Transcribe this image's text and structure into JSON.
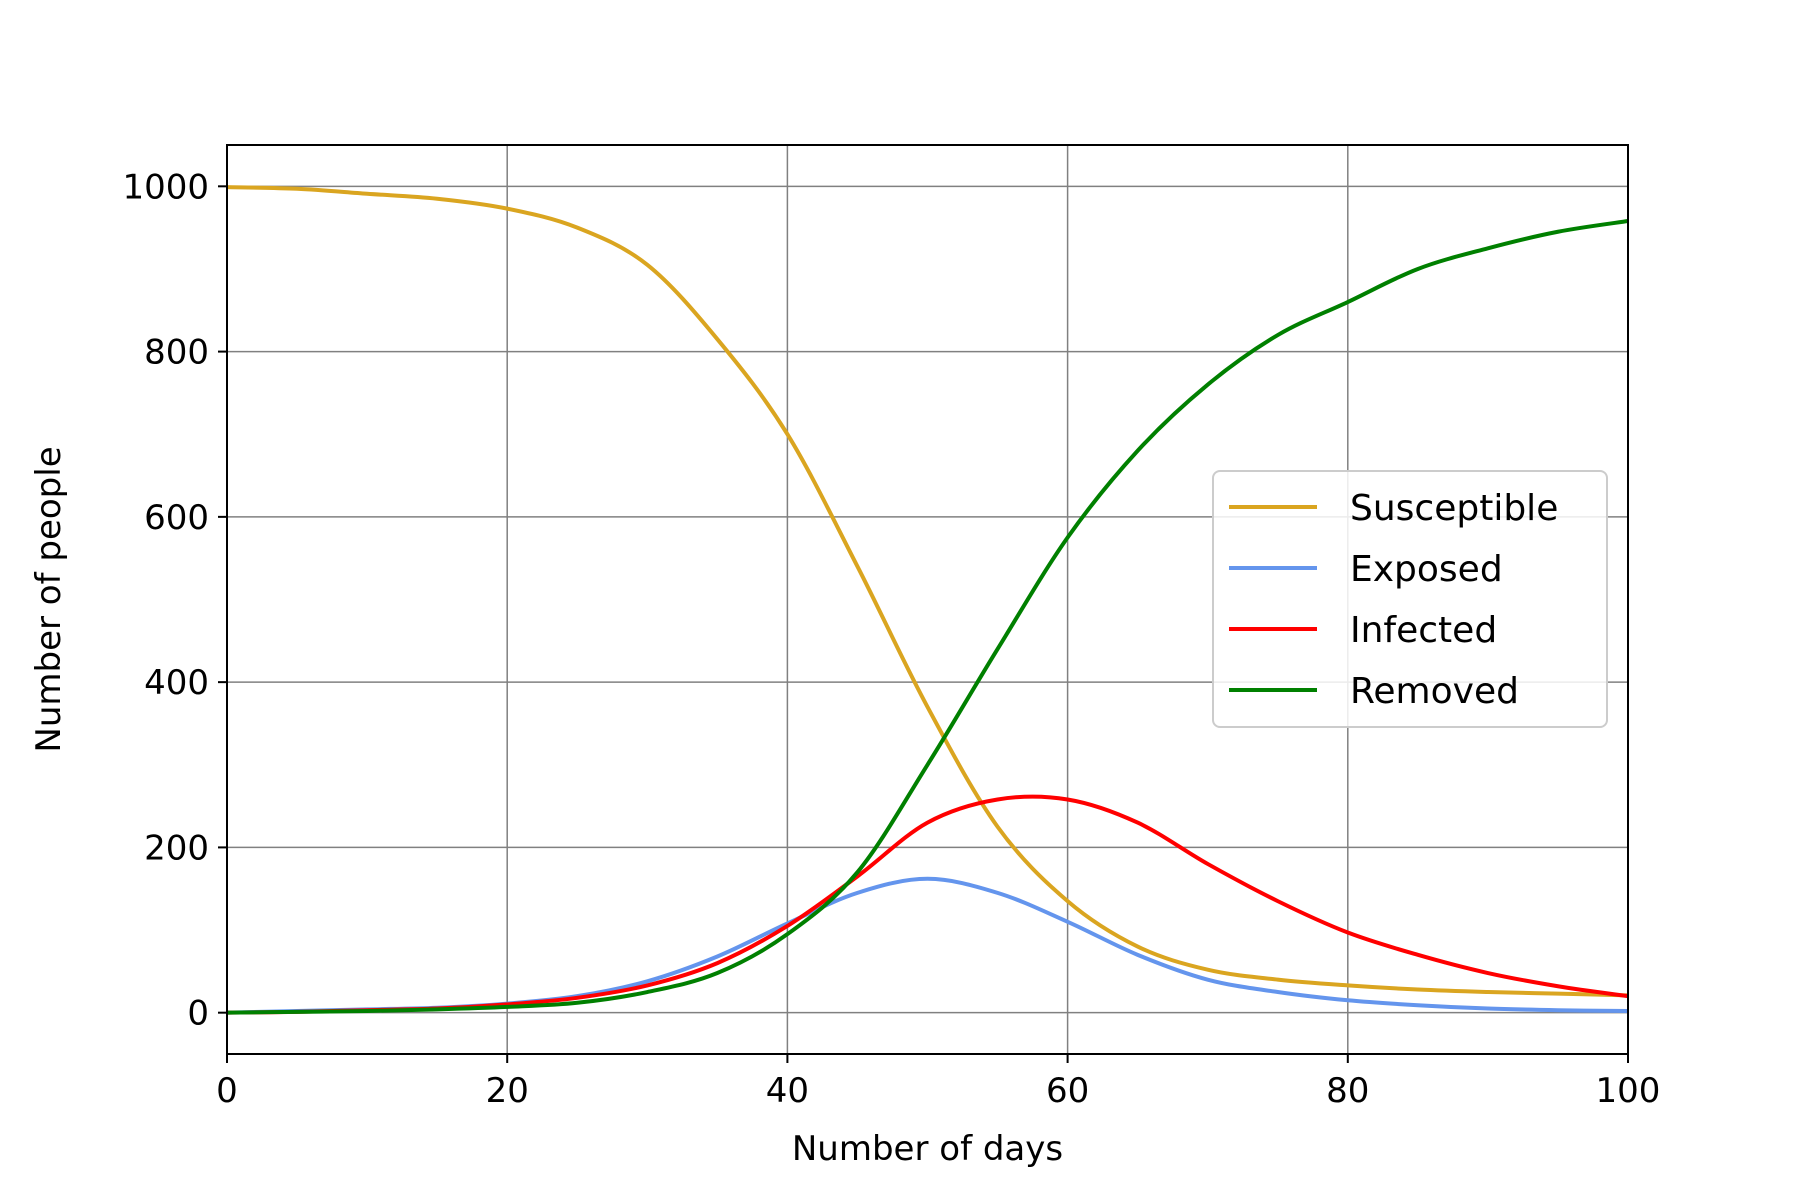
{
  "chart_data": {
    "type": "line",
    "title": "",
    "xlabel": "Number of days",
    "ylabel": "Number of people",
    "xlim": [
      0,
      100
    ],
    "ylim": [
      -50,
      1050
    ],
    "xticks": [
      0,
      20,
      40,
      60,
      80,
      100
    ],
    "yticks": [
      0,
      200,
      400,
      600,
      800,
      1000
    ],
    "xtick_labels": [
      "0",
      "20",
      "40",
      "60",
      "80",
      "100"
    ],
    "ytick_labels": [
      "0",
      "200",
      "400",
      "600",
      "800",
      "1000"
    ],
    "grid": true,
    "legend_position": "center-right",
    "x": [
      0,
      5,
      10,
      15,
      20,
      25,
      30,
      35,
      40,
      45,
      50,
      55,
      60,
      65,
      70,
      75,
      80,
      85,
      90,
      95,
      100
    ],
    "series": [
      {
        "name": "Susceptible",
        "color": "#DAA520",
        "values": [
          999,
          997,
          991,
          985,
          973,
          950,
          905,
          815,
          700,
          540,
          370,
          225,
          135,
          80,
          52,
          40,
          33,
          28,
          25,
          23,
          21
        ]
      },
      {
        "name": "Exposed",
        "color": "#6495ED",
        "values": [
          0,
          2,
          4,
          6,
          11,
          20,
          38,
          68,
          108,
          145,
          162,
          145,
          110,
          70,
          40,
          25,
          15,
          9,
          5,
          3,
          2
        ]
      },
      {
        "name": "Infected",
        "color": "#FF0000",
        "values": [
          0,
          1,
          3,
          5,
          10,
          18,
          33,
          60,
          105,
          165,
          230,
          258,
          258,
          230,
          180,
          135,
          97,
          70,
          48,
          32,
          20
        ]
      },
      {
        "name": "Removed",
        "color": "#008000",
        "values": [
          0,
          1,
          2,
          4,
          7,
          12,
          25,
          48,
          95,
          170,
          300,
          440,
          575,
          680,
          760,
          820,
          860,
          900,
          925,
          945,
          958
        ]
      }
    ]
  }
}
